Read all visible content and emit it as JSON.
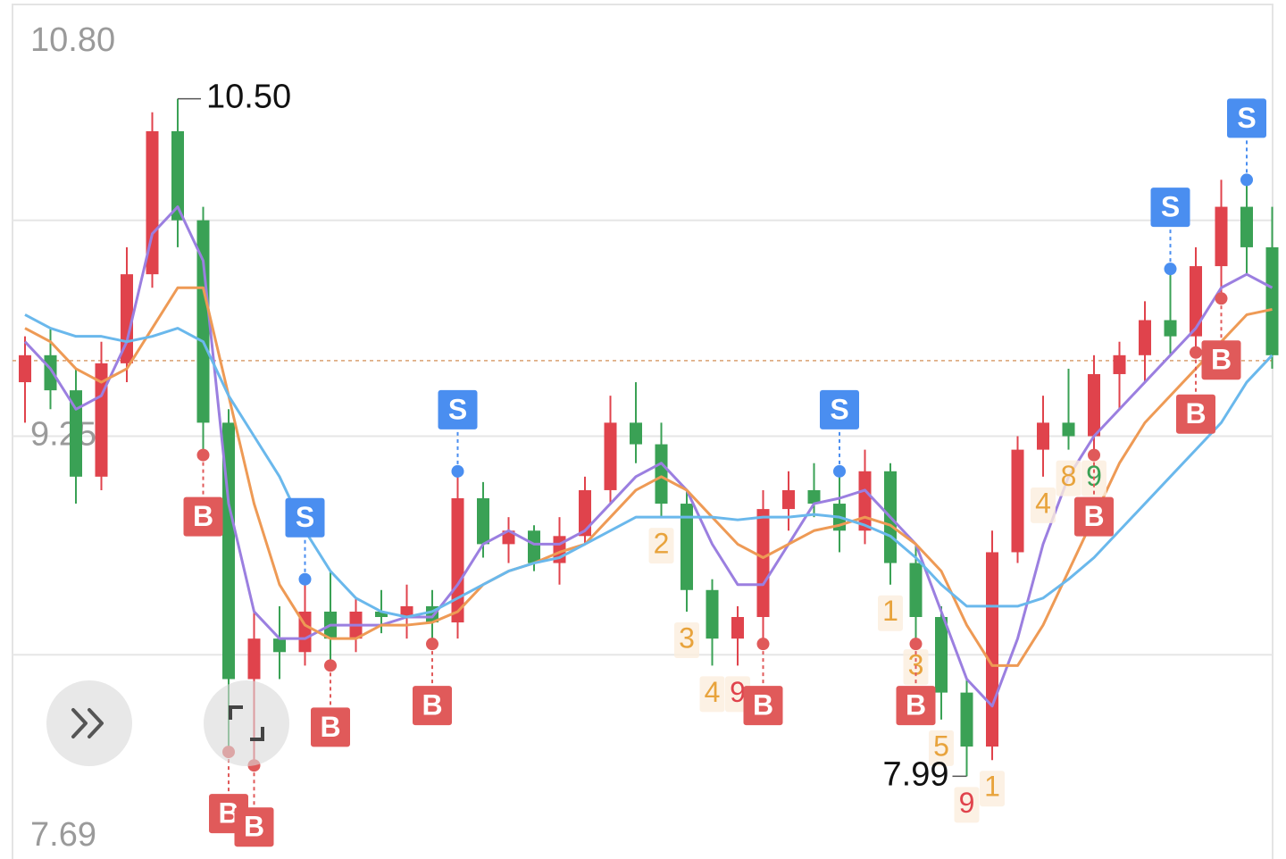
{
  "chart_data": {
    "type": "candlestick",
    "ylim": [
      7.69,
      10.8
    ],
    "yticks": [
      {
        "value": 10.8,
        "label": "10.80"
      },
      9.25,
      7.69
    ],
    "grid_lines": [
      10.05,
      9.25,
      8.44
    ],
    "ref_line": 9.53,
    "up_color": "#e0434c",
    "down_color": "#3aa155",
    "open": [
      9.45,
      9.55,
      9.42,
      9.1,
      9.52,
      9.85,
      10.38,
      10.05,
      9.3,
      8.35,
      8.5,
      8.45,
      8.6,
      8.5,
      8.6,
      8.58,
      8.62,
      8.56,
      9.02,
      8.85,
      8.9,
      8.78,
      8.88,
      9.05,
      9.3,
      9.22,
      9.0,
      8.68,
      8.5,
      8.58,
      8.98,
      9.05,
      9.0,
      8.9,
      9.12,
      8.78,
      8.58,
      8.3,
      8.1,
      8.82,
      9.2,
      9.3,
      9.25,
      9.48,
      9.55,
      9.68,
      9.62,
      9.88,
      10.1,
      9.95
    ],
    "high": [
      9.62,
      9.65,
      9.5,
      9.6,
      9.95,
      10.45,
      10.5,
      10.1,
      9.35,
      8.6,
      8.62,
      8.7,
      8.75,
      8.65,
      8.68,
      8.7,
      8.68,
      9.1,
      9.08,
      8.95,
      8.92,
      8.95,
      9.1,
      9.4,
      9.45,
      9.3,
      9.05,
      8.72,
      8.62,
      9.05,
      9.12,
      9.15,
      9.1,
      9.2,
      9.15,
      8.85,
      8.62,
      8.35,
      8.9,
      9.25,
      9.4,
      9.5,
      9.55,
      9.6,
      9.75,
      9.85,
      9.95,
      10.2,
      10.18,
      10.1
    ],
    "low": [
      9.3,
      9.35,
      9.0,
      9.05,
      9.45,
      9.8,
      9.95,
      9.2,
      8.1,
      8.05,
      8.35,
      8.4,
      8.42,
      8.45,
      8.52,
      8.5,
      8.5,
      8.5,
      8.8,
      8.78,
      8.75,
      8.7,
      8.85,
      9.0,
      9.15,
      8.95,
      8.6,
      8.4,
      8.4,
      8.5,
      8.9,
      8.95,
      8.82,
      8.85,
      8.7,
      8.5,
      8.2,
      7.99,
      8.05,
      8.78,
      9.1,
      9.2,
      9.2,
      9.35,
      9.45,
      9.55,
      9.58,
      9.78,
      9.85,
      9.5
    ],
    "close": [
      9.55,
      9.42,
      9.1,
      9.52,
      9.85,
      10.38,
      10.05,
      9.3,
      8.35,
      8.5,
      8.45,
      8.6,
      8.5,
      8.6,
      8.58,
      8.62,
      8.56,
      9.02,
      8.85,
      8.9,
      8.78,
      8.88,
      9.05,
      9.3,
      9.22,
      9.0,
      8.68,
      8.5,
      8.58,
      8.98,
      9.05,
      9.0,
      8.9,
      9.12,
      8.78,
      8.58,
      8.3,
      8.1,
      8.82,
      9.2,
      9.3,
      9.25,
      9.48,
      9.55,
      9.68,
      9.62,
      9.88,
      10.1,
      9.95,
      9.55
    ],
    "series": [
      {
        "color": "#9b7fe0",
        "values": [
          9.6,
          9.5,
          9.35,
          9.4,
          9.6,
          10.0,
          10.1,
          9.9,
          9.0,
          8.6,
          8.5,
          8.5,
          8.55,
          8.55,
          8.55,
          8.58,
          8.58,
          8.7,
          8.85,
          8.9,
          8.85,
          8.85,
          8.9,
          9.0,
          9.1,
          9.15,
          9.05,
          8.85,
          8.7,
          8.7,
          8.85,
          9.0,
          9.02,
          9.05,
          8.95,
          8.85,
          8.6,
          8.35,
          8.25,
          8.5,
          8.85,
          9.1,
          9.25,
          9.35,
          9.45,
          9.55,
          9.65,
          9.8,
          9.85,
          9.8
        ]
      },
      {
        "color": "#ee9a55",
        "values": [
          9.65,
          9.6,
          9.5,
          9.45,
          9.5,
          9.65,
          9.8,
          9.8,
          9.4,
          9.0,
          8.7,
          8.55,
          8.5,
          8.5,
          8.55,
          8.55,
          8.56,
          8.6,
          8.7,
          8.75,
          8.78,
          8.82,
          8.85,
          8.95,
          9.05,
          9.1,
          9.05,
          8.95,
          8.85,
          8.8,
          8.85,
          8.9,
          8.92,
          8.95,
          8.92,
          8.85,
          8.75,
          8.55,
          8.4,
          8.4,
          8.55,
          8.75,
          8.95,
          9.15,
          9.3,
          9.4,
          9.5,
          9.6,
          9.7,
          9.72
        ]
      },
      {
        "color": "#6ab8ec",
        "values": [
          9.7,
          9.65,
          9.62,
          9.62,
          9.6,
          9.62,
          9.65,
          9.6,
          9.4,
          9.25,
          9.1,
          8.9,
          8.75,
          8.65,
          8.6,
          8.58,
          8.6,
          8.65,
          8.7,
          8.75,
          8.78,
          8.8,
          8.85,
          8.9,
          8.95,
          8.95,
          8.95,
          8.95,
          8.94,
          8.95,
          8.95,
          8.96,
          8.95,
          8.92,
          8.88,
          8.8,
          8.7,
          8.62,
          8.62,
          8.62,
          8.65,
          8.72,
          8.8,
          8.9,
          9.0,
          9.1,
          9.2,
          9.3,
          9.45,
          9.55
        ]
      }
    ],
    "signals": [
      null,
      null,
      null,
      null,
      null,
      null,
      null,
      "B",
      "B",
      "B",
      null,
      "S",
      "B",
      null,
      null,
      null,
      "B",
      "S",
      null,
      null,
      null,
      null,
      null,
      null,
      null,
      null,
      null,
      null,
      null,
      "B",
      null,
      null,
      "S",
      null,
      null,
      "B",
      null,
      null,
      null,
      null,
      null,
      null,
      "B",
      null,
      null,
      "S",
      "B",
      "B",
      "S",
      null
    ],
    "signal_colors": {
      "B": "#e05a5a",
      "S": "#4a8ef0"
    },
    "td_counts": [
      null,
      null,
      null,
      null,
      null,
      null,
      null,
      null,
      null,
      null,
      null,
      null,
      null,
      null,
      null,
      null,
      null,
      null,
      null,
      null,
      null,
      null,
      null,
      null,
      null,
      2,
      3,
      4,
      9,
      null,
      null,
      null,
      null,
      null,
      1,
      3,
      5,
      9,
      1,
      null,
      4,
      8,
      9,
      null,
      null,
      null,
      null,
      null,
      null,
      null
    ],
    "td_colors": [
      null,
      null,
      null,
      null,
      null,
      null,
      null,
      null,
      null,
      null,
      null,
      null,
      null,
      null,
      null,
      null,
      null,
      null,
      null,
      null,
      null,
      null,
      null,
      null,
      null,
      "#e8a33c",
      "#e8a33c",
      "#e8a33c",
      "#e0434c",
      null,
      null,
      null,
      null,
      null,
      "#e8a33c",
      "#e8a33c",
      "#e8a33c",
      "#e0434c",
      "#e8a33c",
      null,
      "#e8a33c",
      "#e8a33c",
      "#3aa155",
      null,
      null,
      null,
      null,
      null,
      null,
      null
    ],
    "high_mark": {
      "value": 10.5,
      "label": "10.50"
    },
    "low_mark": {
      "value": 7.99,
      "label": "7.99"
    }
  }
}
